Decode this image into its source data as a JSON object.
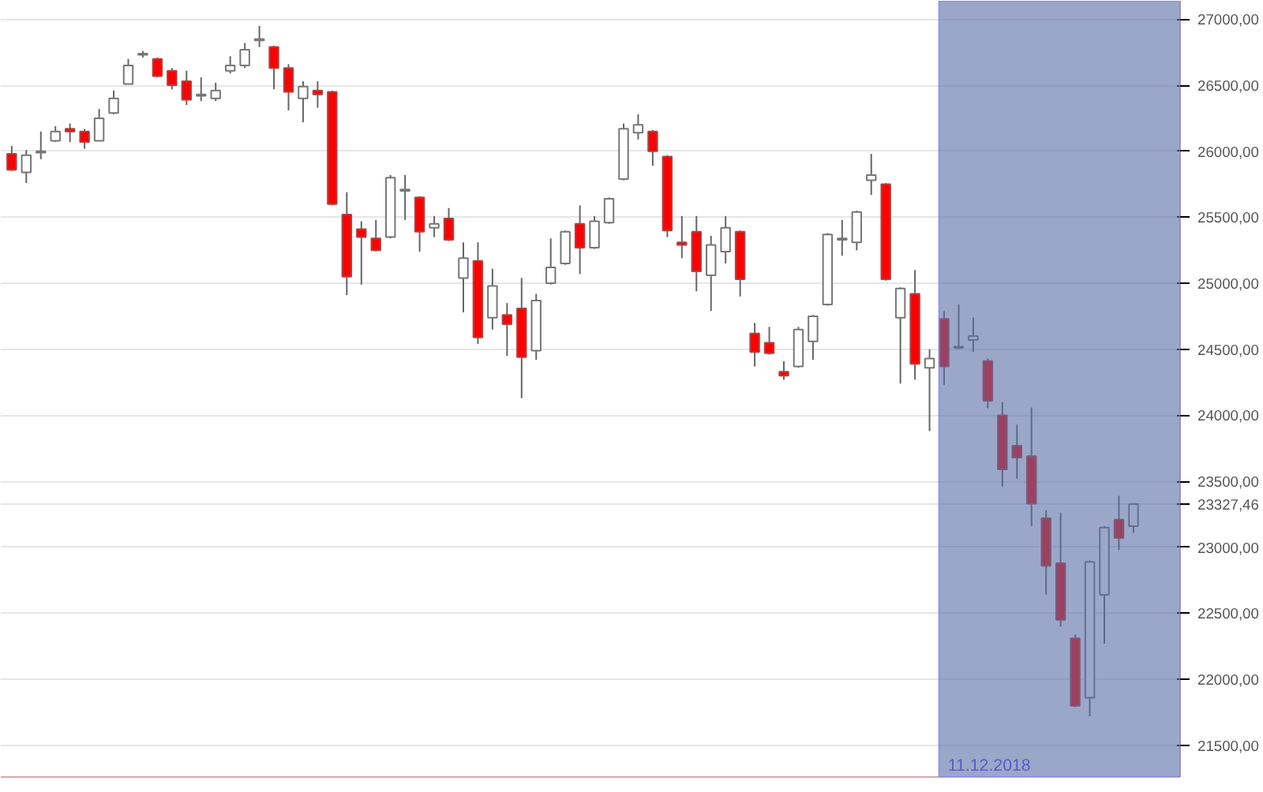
{
  "chart_data": {
    "type": "candlestick",
    "categories": [
      null,
      null,
      null,
      null,
      null,
      null,
      null,
      null,
      null,
      null,
      null,
      null,
      null,
      null,
      null,
      null,
      null,
      null,
      null,
      null,
      null,
      null,
      null,
      null,
      null,
      null,
      null,
      null,
      null,
      null,
      null,
      null,
      null,
      null,
      null,
      null,
      null,
      null,
      null,
      null,
      null,
      null,
      null,
      null,
      null,
      null,
      null,
      null,
      null,
      null,
      null,
      null,
      null,
      null,
      null,
      null,
      null,
      null,
      null,
      null,
      null,
      null,
      null,
      null,
      null,
      null,
      null,
      null,
      null,
      null,
      null,
      null,
      null,
      null,
      null,
      null,
      null,
      null
    ],
    "ohlc": [
      [
        25980,
        26040,
        25850,
        25860
      ],
      [
        25840,
        26010,
        25760,
        25970
      ],
      [
        25990,
        26150,
        25940,
        26000
      ],
      [
        26080,
        26190,
        26070,
        26150
      ],
      [
        26170,
        26210,
        26070,
        26150
      ],
      [
        26150,
        26170,
        26020,
        26070
      ],
      [
        26080,
        26320,
        26080,
        26250
      ],
      [
        26290,
        26460,
        26280,
        26400
      ],
      [
        26510,
        26700,
        26510,
        26650
      ],
      [
        26730,
        26760,
        26710,
        26740
      ],
      [
        26700,
        26710,
        26560,
        26570
      ],
      [
        26610,
        26630,
        26470,
        26500
      ],
      [
        26530,
        26610,
        26350,
        26390
      ],
      [
        26420,
        26560,
        26380,
        26430
      ],
      [
        26400,
        26520,
        26380,
        26460
      ],
      [
        26610,
        26720,
        26590,
        26650
      ],
      [
        26650,
        26820,
        26630,
        26770
      ],
      [
        26840,
        26950,
        26790,
        26850
      ],
      [
        26790,
        26800,
        26470,
        26630
      ],
      [
        26630,
        26660,
        26310,
        26450
      ],
      [
        26400,
        26530,
        26220,
        26490
      ],
      [
        26460,
        26530,
        26330,
        26430
      ],
      [
        26450,
        26460,
        25590,
        25600
      ],
      [
        25520,
        25690,
        24910,
        25050
      ],
      [
        25410,
        25470,
        24990,
        25350
      ],
      [
        25340,
        25480,
        25240,
        25250
      ],
      [
        25350,
        25820,
        25340,
        25800
      ],
      [
        25700,
        25820,
        25480,
        25710
      ],
      [
        25650,
        25660,
        25240,
        25390
      ],
      [
        25420,
        25510,
        25350,
        25450
      ],
      [
        25490,
        25570,
        25320,
        25330
      ],
      [
        25040,
        25310,
        24780,
        25190
      ],
      [
        25170,
        25310,
        24540,
        24590
      ],
      [
        24740,
        25110,
        24650,
        24980
      ],
      [
        24760,
        24850,
        24450,
        24690
      ],
      [
        24810,
        25040,
        24130,
        24440
      ],
      [
        24490,
        24920,
        24420,
        24870
      ],
      [
        25000,
        25340,
        24990,
        25120
      ],
      [
        25150,
        25400,
        25140,
        25390
      ],
      [
        25450,
        25590,
        25070,
        25270
      ],
      [
        25270,
        25510,
        25260,
        25470
      ],
      [
        25460,
        25650,
        25450,
        25640
      ],
      [
        25790,
        26210,
        25780,
        26170
      ],
      [
        26140,
        26280,
        26090,
        26200
      ],
      [
        26150,
        26160,
        25890,
        26000
      ],
      [
        25960,
        25970,
        25350,
        25400
      ],
      [
        25310,
        25510,
        25190,
        25290
      ],
      [
        25390,
        25510,
        24940,
        25090
      ],
      [
        25060,
        25360,
        24790,
        25290
      ],
      [
        25240,
        25510,
        25150,
        25420
      ],
      [
        25390,
        25400,
        24900,
        25030
      ],
      [
        24620,
        24700,
        24370,
        24480
      ],
      [
        24550,
        24670,
        24460,
        24470
      ],
      [
        24330,
        24410,
        24270,
        24300
      ],
      [
        24370,
        24670,
        24360,
        24650
      ],
      [
        24560,
        24760,
        24420,
        24750
      ],
      [
        24840,
        25380,
        24830,
        25370
      ],
      [
        25330,
        25480,
        25210,
        25340
      ],
      [
        25310,
        25550,
        25250,
        25540
      ],
      [
        25780,
        25980,
        25670,
        25820
      ],
      [
        25750,
        25760,
        25020,
        25030
      ],
      [
        24740,
        24970,
        24240,
        24960
      ],
      [
        24920,
        25100,
        24270,
        24390
      ],
      [
        24360,
        24500,
        23880,
        24430
      ],
      [
        24730,
        24790,
        24230,
        24370
      ],
      [
        24510,
        24840,
        24500,
        24520
      ],
      [
        24570,
        24740,
        24480,
        24600
      ],
      [
        24410,
        24430,
        24050,
        24110
      ],
      [
        24000,
        24100,
        23460,
        23590
      ],
      [
        23770,
        23930,
        23520,
        23680
      ],
      [
        23690,
        24060,
        23160,
        23330
      ],
      [
        23220,
        23280,
        22640,
        22860
      ],
      [
        22880,
        23260,
        22400,
        22450
      ],
      [
        22310,
        22340,
        21790,
        21800
      ],
      [
        21860,
        22900,
        21720,
        22890
      ],
      [
        22640,
        23160,
        22270,
        23150
      ],
      [
        23210,
        23390,
        22980,
        23070
      ],
      [
        23160,
        23330,
        23110,
        23327.46
      ]
    ],
    "ylim": [
      21260,
      27140
    ],
    "yticks": [
      {
        "value": 23327.46,
        "label": "23327,46"
      },
      {
        "value": 21500,
        "label": "21500,00"
      },
      {
        "value": 22000,
        "label": "22000,00"
      },
      {
        "value": 22500,
        "label": "22500,00"
      },
      {
        "value": 23000,
        "label": "23000,00"
      },
      {
        "value": 23500,
        "label": "23500,00"
      },
      {
        "value": 24000,
        "label": "24000,00"
      },
      {
        "value": 24500,
        "label": "24500,00"
      },
      {
        "value": 25000,
        "label": "25000,00"
      },
      {
        "value": 25500,
        "label": "25500,00"
      },
      {
        "value": 26000,
        "label": "26000,00"
      },
      {
        "value": 26500,
        "label": "26500,00"
      },
      {
        "value": 27000,
        "label": "27000,00"
      }
    ],
    "tick_labels": "y",
    "grid": "y",
    "annotations": [
      "11.12.2018"
    ]
  }
}
